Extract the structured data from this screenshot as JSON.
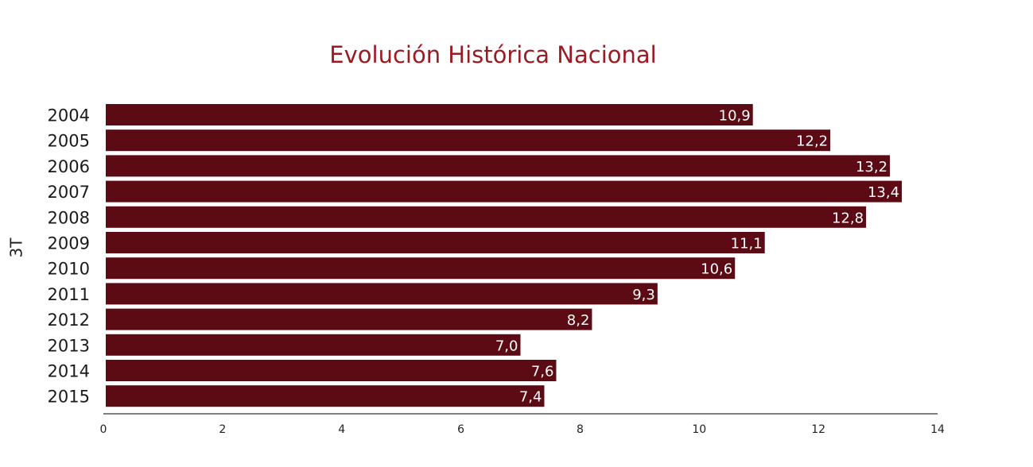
{
  "chart_data": {
    "type": "bar",
    "orientation": "horizontal",
    "title": "Evolución Histórica Nacional",
    "ylabel": "3T",
    "xlabel": "",
    "categories": [
      "2004",
      "2005",
      "2006",
      "2007",
      "2008",
      "2009",
      "2010",
      "2011",
      "2012",
      "2013",
      "2014",
      "2015"
    ],
    "values": [
      10.9,
      12.2,
      13.2,
      13.4,
      12.8,
      11.1,
      10.6,
      9.3,
      8.2,
      7.0,
      7.6,
      7.4
    ],
    "value_labels": [
      "10,9",
      "12,2",
      "13,2",
      "13,4",
      "12,8",
      "11,1",
      "10,6",
      "9,3",
      "8,2",
      "7,0",
      "7,6",
      "7,4"
    ],
    "xlim": [
      0,
      14
    ],
    "xticks": [
      0,
      2,
      4,
      6,
      8,
      10,
      12,
      14
    ],
    "grid": false,
    "legend": "none",
    "colors": {
      "bar": "#5c0a13",
      "title": "#9b1b22",
      "label": "#ffffff"
    }
  }
}
